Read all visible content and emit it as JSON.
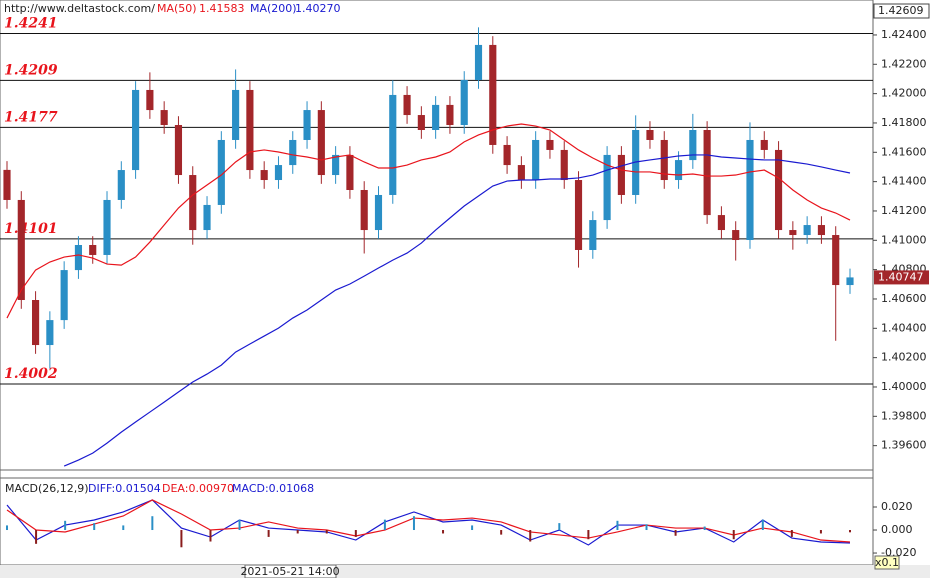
{
  "chart_data": [
    {
      "type": "candlestick",
      "title": "http://www.deltastock.com/",
      "up_color": "#2a8fc6",
      "down_color": "#a3262a",
      "open": [
        1.4148,
        1.41275,
        1.40593,
        1.40286,
        1.40456,
        1.40797,
        1.40968,
        1.409,
        1.41275,
        1.41479,
        1.42025,
        1.41888,
        1.41786,
        1.41445,
        1.4107,
        1.41241,
        1.41684,
        1.42025,
        1.41479,
        1.41411,
        1.41513,
        1.41684,
        1.41888,
        1.41445,
        1.41582,
        1.41343,
        1.4107,
        1.41309,
        1.41991,
        1.41854,
        1.41752,
        1.41923,
        1.41786,
        1.42093,
        1.42332,
        1.4165,
        1.41513,
        1.41411,
        1.41684,
        1.41616,
        1.41411,
        1.40934,
        1.41138,
        1.41582,
        1.41309,
        1.41752,
        1.41684,
        1.41411,
        1.41547,
        1.41752,
        1.41172,
        1.4107,
        1.41002,
        1.41684,
        1.41616,
        1.4107,
        1.41036,
        1.41104,
        1.41036,
        1.40695
      ],
      "high": [
        1.4154,
        1.41335,
        1.40653,
        1.40516,
        1.40857,
        1.41028,
        1.41028,
        1.41335,
        1.41539,
        1.42085,
        1.42145,
        1.41948,
        1.41846,
        1.41505,
        1.41301,
        1.41744,
        1.42165,
        1.42085,
        1.41539,
        1.41573,
        1.41744,
        1.41948,
        1.41948,
        1.41642,
        1.41642,
        1.41403,
        1.41369,
        1.42091,
        1.42051,
        1.41914,
        1.41983,
        1.41983,
        1.42153,
        1.42452,
        1.42392,
        1.4171,
        1.41573,
        1.41744,
        1.41744,
        1.41676,
        1.41471,
        1.41198,
        1.41642,
        1.41642,
        1.41852,
        1.41812,
        1.41744,
        1.41607,
        1.41862,
        1.41812,
        1.41232,
        1.4113,
        1.41804,
        1.41744,
        1.41676,
        1.4113,
        1.41164,
        1.41164,
        1.41096,
        1.40807
      ],
      "low": [
        1.41215,
        1.40533,
        1.40226,
        1.40126,
        1.40396,
        1.40737,
        1.4084,
        1.4084,
        1.41215,
        1.41419,
        1.41828,
        1.41726,
        1.41385,
        1.4097,
        1.4101,
        1.41181,
        1.41624,
        1.41419,
        1.41351,
        1.41351,
        1.41453,
        1.41624,
        1.41385,
        1.41385,
        1.41283,
        1.4091,
        1.4101,
        1.41249,
        1.41794,
        1.41692,
        1.41692,
        1.41726,
        1.41726,
        1.42033,
        1.4159,
        1.41453,
        1.41351,
        1.41351,
        1.41556,
        1.41351,
        1.40814,
        1.40874,
        1.41078,
        1.41249,
        1.41249,
        1.41624,
        1.41351,
        1.41351,
        1.41487,
        1.41112,
        1.4101,
        1.40862,
        1.40942,
        1.41556,
        1.4101,
        1.40936,
        1.40976,
        1.40976,
        1.40315,
        1.40635
      ],
      "close": [
        1.41275,
        1.40593,
        1.40286,
        1.40456,
        1.40797,
        1.40968,
        1.409,
        1.41275,
        1.41479,
        1.42025,
        1.41888,
        1.41786,
        1.41445,
        1.4107,
        1.41241,
        1.41684,
        1.42025,
        1.41479,
        1.41411,
        1.41513,
        1.41684,
        1.41888,
        1.41445,
        1.41582,
        1.41343,
        1.4107,
        1.41309,
        1.41991,
        1.41854,
        1.41752,
        1.41923,
        1.41786,
        1.42093,
        1.42332,
        1.4165,
        1.41513,
        1.41411,
        1.41684,
        1.41616,
        1.41411,
        1.40934,
        1.41138,
        1.41582,
        1.41309,
        1.41752,
        1.41684,
        1.41411,
        1.41547,
        1.41752,
        1.41172,
        1.4107,
        1.41002,
        1.41684,
        1.41616,
        1.4107,
        1.41036,
        1.41104,
        1.41036,
        1.40695,
        1.40747
      ],
      "series": [
        {
          "name": "MA(50)",
          "value_label": "1.41583",
          "color": "#e8141c",
          "values": [
            1.4047,
            1.40661,
            1.40797,
            1.40852,
            1.40886,
            1.409,
            1.40879,
            1.40838,
            1.40831,
            1.40886,
            1.40988,
            1.41104,
            1.4122,
            1.41309,
            1.41377,
            1.41445,
            1.41534,
            1.41602,
            1.41616,
            1.41602,
            1.41582,
            1.41568,
            1.41548,
            1.41568,
            1.41582,
            1.41534,
            1.41493,
            1.41493,
            1.41513,
            1.41548,
            1.41568,
            1.41602,
            1.41671,
            1.41718,
            1.41752,
            1.41779,
            1.41793,
            1.41779,
            1.41752,
            1.41684,
            1.41616,
            1.41561,
            1.41513,
            1.41479,
            1.41466,
            1.41466,
            1.41452,
            1.41445,
            1.41452,
            1.41438,
            1.41438,
            1.41445,
            1.41466,
            1.41479,
            1.41425,
            1.41343,
            1.41275,
            1.4122,
            1.41186,
            1.41138
          ]
        },
        {
          "name": "MA(200)",
          "value_label": "1.40270",
          "color": "#1a1ad0",
          "values": [
            null,
            null,
            null,
            null,
            1.39461,
            1.39502,
            1.39549,
            1.39617,
            1.39692,
            1.39761,
            1.39829,
            1.39897,
            1.39966,
            1.40034,
            1.40088,
            1.40149,
            1.40238,
            1.40293,
            1.40347,
            1.40401,
            1.4047,
            1.40525,
            1.40593,
            1.40661,
            1.40702,
            1.40756,
            1.40811,
            1.40865,
            1.40913,
            1.40981,
            1.4107,
            1.41152,
            1.41234,
            1.41302,
            1.4137,
            1.41404,
            1.41411,
            1.41411,
            1.41418,
            1.41418,
            1.41425,
            1.41445,
            1.41479,
            1.41507,
            1.41534,
            1.41548,
            1.41561,
            1.41575,
            1.41582,
            1.41582,
            1.41568,
            1.41561,
            1.41554,
            1.41548,
            1.41548,
            1.41534,
            1.4152,
            1.415,
            1.41479,
            1.41459
          ]
        }
      ],
      "levels": [
        1.4241,
        1.4209,
        1.4177,
        1.4101,
        1.4002
      ],
      "level_color": "#e8141c",
      "ylim": [
        1.39434,
        1.42609
      ],
      "yticks": [
        {
          "value": 1.396,
          "label": "1.39600"
        },
        {
          "value": 1.398,
          "label": "1.39800"
        },
        {
          "value": 1.4,
          "label": "1.40000"
        },
        {
          "value": 1.402,
          "label": "1.40200"
        },
        {
          "value": 1.404,
          "label": "1.40400"
        },
        {
          "value": 1.406,
          "label": "1.40600"
        },
        {
          "value": 1.408,
          "label": "1.40800"
        },
        {
          "value": 1.41,
          "label": "1.41000"
        },
        {
          "value": 1.412,
          "label": "1.41200"
        },
        {
          "value": 1.414,
          "label": "1.41400"
        },
        {
          "value": 1.416,
          "label": "1.41600"
        },
        {
          "value": 1.418,
          "label": "1.41800"
        },
        {
          "value": 1.42,
          "label": "1.42000"
        },
        {
          "value": 1.422,
          "label": "1.42200"
        },
        {
          "value": 1.424,
          "label": "1.42400"
        }
      ],
      "cursor_time": "2021-05-21 14:00"
    },
    {
      "type": "macd",
      "title": "MACD(26,12,9)",
      "up_color": "#2a8fc6",
      "down_color": "#8a1c1c",
      "series": [
        {
          "name": "DIFF:0.01504",
          "color": "#1a1ad0",
          "values": [
            0.0217,
            -0.0087,
            0.0043,
            0.0087,
            0.0157,
            0.0261,
            0.0017,
            -0.0061,
            0.0087,
            0.0017,
            0,
            -0.0017,
            -0.0087,
            0.007,
            0.0157,
            0.007,
            0.0087,
            0.0043,
            -0.0087,
            0,
            -0.013,
            0.0043,
            0.0043,
            -0.0017,
            0.0017,
            -0.0104,
            0.0087,
            -0.007,
            -0.0104,
            -0.0113
          ]
        },
        {
          "name": "DEA:0.00970",
          "color": "#e8141c",
          "values": [
            0.0174,
            0,
            -0.0017,
            0.0052,
            0.0122,
            0.0261,
            0.0139,
            0,
            0.0017,
            0.007,
            0.0017,
            0,
            -0.0052,
            0,
            0.0104,
            0.0087,
            0.0104,
            0.007,
            -0.0017,
            -0.0043,
            -0.007,
            -0.0017,
            0.0043,
            0.0017,
            0.0017,
            -0.0043,
            0.0017,
            -0.0017,
            -0.0087,
            -0.0104
          ]
        },
        {
          "name": "MACD:0.01068",
          "color": "#1a1ad0",
          "kind": "histogram",
          "values": [
            0.004,
            -0.012,
            0.008,
            0.006,
            0.004,
            0.012,
            -0.015,
            -0.01,
            0.009,
            -0.006,
            -0.003,
            -0.003,
            -0.006,
            0.009,
            0.012,
            -0.003,
            0.004,
            -0.004,
            -0.01,
            0.006,
            -0.008,
            0.008,
            0.005,
            -0.005,
            0.003,
            -0.008,
            0.009,
            -0.006,
            -0.003,
            -0.002
          ]
        }
      ],
      "ylim": [
        -0.0304,
        0.0452
      ],
      "yticks": [
        {
          "value": -0.02,
          "label": "-0.020"
        },
        {
          "value": 0,
          "label": "0.000"
        },
        {
          "value": 0.02,
          "label": "0.020"
        }
      ],
      "scale_note": "x0.1"
    }
  ]
}
